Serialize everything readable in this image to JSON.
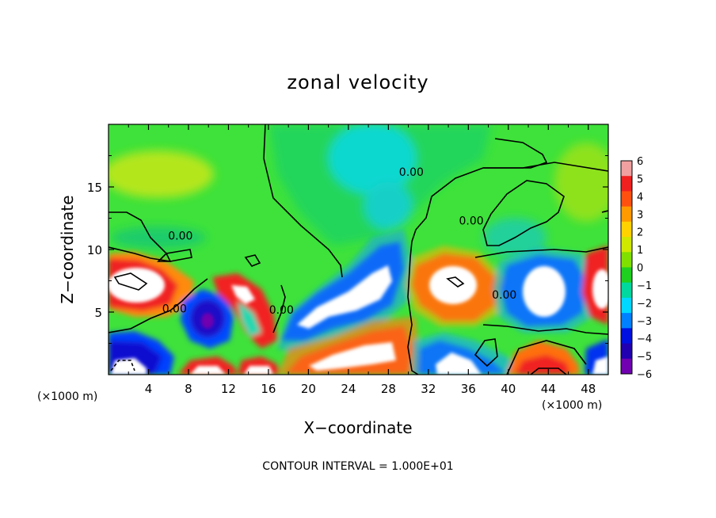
{
  "chart_data": {
    "type": "heatmap",
    "title": "zonal velocity",
    "xlabel": "X−coordinate",
    "ylabel": "Z−coordinate",
    "x_unit_label": "(×1000 m)",
    "y_unit_label": "(×1000 m)",
    "footer": "CONTOUR INTERVAL = 1.000E+01",
    "xlim": [
      0,
      50
    ],
    "ylim": [
      0,
      20
    ],
    "x_ticks": [
      4,
      8,
      12,
      16,
      20,
      24,
      28,
      32,
      36,
      40,
      44,
      48
    ],
    "x_tick_labels": [
      "4",
      "8",
      "12",
      "16",
      "20",
      "24",
      "28",
      "32",
      "36",
      "40",
      "44",
      "48"
    ],
    "y_ticks": [
      5,
      10,
      15
    ],
    "y_tick_labels": [
      "5",
      "10",
      "15"
    ],
    "colorbar": {
      "ticks": [
        6,
        5,
        4,
        3,
        2,
        1,
        0,
        -1,
        -2,
        -3,
        -4,
        -5,
        -6
      ],
      "tick_labels": [
        "6",
        "5",
        "4",
        "3",
        "2",
        "1",
        "0",
        "−1",
        "−2",
        "−3",
        "−4",
        "−5",
        "−6"
      ],
      "colors": [
        "#f0a0a0",
        "#f02020",
        "#ff5010",
        "#ff9a00",
        "#ffd200",
        "#d0e800",
        "#80e000",
        "#20d020",
        "#00d8a0",
        "#00d8ff",
        "#0080ff",
        "#0010e0",
        "#2000b0",
        "#7000b0"
      ]
    },
    "contour_labels": [
      {
        "text": "0.00",
        "x": 30.3,
        "z": 16.2
      },
      {
        "text": "0.00",
        "x": 36.3,
        "z": 12.3
      },
      {
        "text": "0.00",
        "x": 7.2,
        "z": 11.1
      },
      {
        "text": "0.00",
        "x": 6.6,
        "z": 5.3
      },
      {
        "text": "0.00",
        "x": 17.3,
        "z": 5.2
      },
      {
        "text": "0.00",
        "x": 39.6,
        "z": 6.4
      }
    ],
    "features": [
      {
        "kind": "max",
        "x": 2.5,
        "z": 7.4,
        "value": 6
      },
      {
        "kind": "max",
        "x": 11.5,
        "z": 6.0,
        "value": 6
      },
      {
        "kind": "max",
        "x": 14.5,
        "z": 4.8,
        "value": 5
      },
      {
        "kind": "min",
        "x": 10.0,
        "z": 4.6,
        "value": -6
      },
      {
        "kind": "min",
        "x": 21.5,
        "z": 5.8,
        "value": -6
      },
      {
        "kind": "max",
        "x": 23.0,
        "z": 1.5,
        "value": 6
      },
      {
        "kind": "max",
        "x": 33.5,
        "z": 7.4,
        "value": 6
      },
      {
        "kind": "min",
        "x": 43.0,
        "z": 6.9,
        "value": -6
      },
      {
        "kind": "min",
        "x": 34.5,
        "z": 1.2,
        "value": -6
      },
      {
        "kind": "max",
        "x": 49.3,
        "z": 6.9,
        "value": 6
      },
      {
        "kind": "min",
        "x": 48.0,
        "z": 1.2,
        "value": -5
      },
      {
        "kind": "max",
        "x": 9.6,
        "z": 0.5,
        "value": 5
      },
      {
        "kind": "max",
        "x": 14.8,
        "z": 0.5,
        "value": 5
      },
      {
        "kind": "max",
        "x": 43.0,
        "z": 1.0,
        "value": 4
      },
      {
        "kind": "min",
        "x": 24.0,
        "z": 17.5,
        "value": -2
      },
      {
        "kind": "max",
        "x": 6.0,
        "z": 15.0,
        "value": 1
      }
    ]
  }
}
